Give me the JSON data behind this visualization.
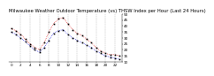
{
  "title": "Milwaukee Weather Outdoor Temperature (vs) THSW Index per Hour (Last 24 Hours)",
  "hours": [
    0,
    1,
    2,
    3,
    4,
    5,
    6,
    7,
    8,
    9,
    10,
    11,
    12,
    13,
    14,
    15,
    16,
    17,
    18,
    19,
    20,
    21,
    22,
    23
  ],
  "outdoor_temp": [
    35,
    33,
    30,
    27,
    23,
    20,
    18,
    22,
    28,
    34,
    36,
    37,
    33,
    30,
    28,
    26,
    24,
    22,
    19,
    17,
    15,
    14,
    13,
    12
  ],
  "thsw_index": [
    38,
    36,
    33,
    29,
    25,
    22,
    20,
    26,
    35,
    42,
    46,
    47,
    42,
    37,
    34,
    32,
    29,
    26,
    22,
    19,
    17,
    16,
    16,
    15
  ],
  "temp_color": "#0000dd",
  "thsw_color": "#dd0000",
  "marker_color": "#000000",
  "bg_color": "#ffffff",
  "grid_color": "#999999",
  "ylim_min": 10,
  "ylim_max": 50,
  "yticks": [
    10,
    15,
    20,
    25,
    30,
    35,
    40,
    45,
    50
  ],
  "title_fontsize": 3.8,
  "tick_fontsize": 3.0,
  "legend_fontsize": 3.0,
  "linewidth": 0.5,
  "markersize": 1.2
}
